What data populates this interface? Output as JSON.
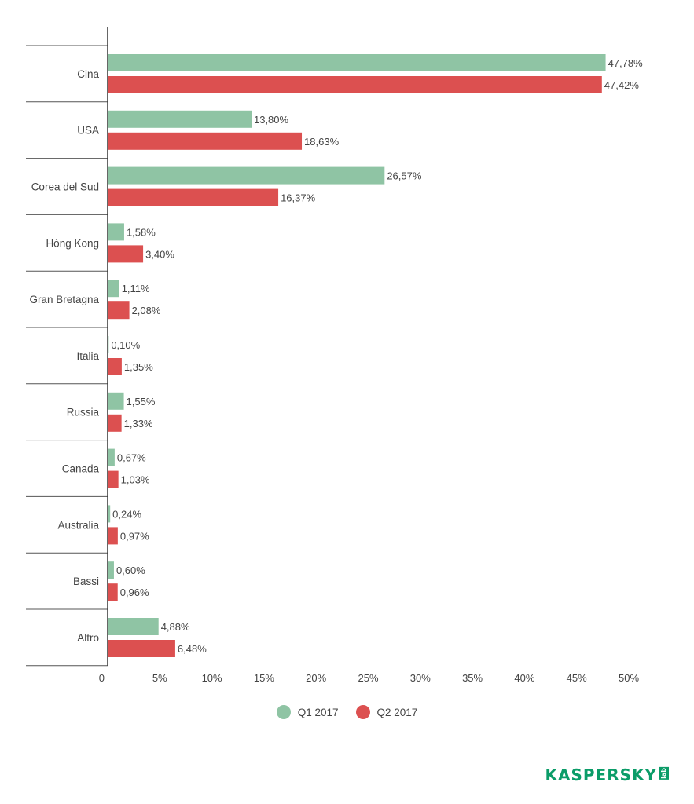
{
  "colors": {
    "q1": "#8fc4a4",
    "q2": "#dc5050",
    "axis": "#333333",
    "sep": "#555555",
    "brand": "#0b9c68"
  },
  "legend": {
    "q1_label": "Q1 2017",
    "q2_label": "Q2 2017"
  },
  "logo": {
    "text": "KASPERSKY",
    "sub": "lab"
  },
  "chart_data": {
    "type": "bar",
    "orientation": "horizontal",
    "categories": [
      "Cina",
      "USA",
      "Corea del Sud",
      "Hòng Kong",
      "Gran Bretagna",
      "Italia",
      "Russia",
      "Canada",
      "Australia",
      "Bassi",
      "Altro"
    ],
    "series": [
      {
        "name": "Q1 2017",
        "values": [
          47.78,
          13.8,
          26.57,
          1.58,
          1.11,
          0.1,
          1.55,
          0.67,
          0.24,
          0.6,
          4.88
        ],
        "labels": [
          "47,78%",
          "13,80%",
          "26,57%",
          "1,58%",
          "1,11%",
          "0,10%",
          "1,55%",
          "0,67%",
          "0,24%",
          "0,60%",
          "4,88%"
        ]
      },
      {
        "name": "Q2 2017",
        "values": [
          47.42,
          18.63,
          16.37,
          3.4,
          2.08,
          1.35,
          1.33,
          1.03,
          0.97,
          0.96,
          6.48
        ],
        "labels": [
          "47,42%",
          "18,63%",
          "16,37%",
          "3,40%",
          "2,08%",
          "1,35%",
          "1,33%",
          "1,03%",
          "0,97%",
          "0,96%",
          "6,48%"
        ]
      }
    ],
    "xlim": [
      0,
      50
    ],
    "xticks": [
      0,
      5,
      10,
      15,
      20,
      25,
      30,
      35,
      40,
      45,
      50
    ],
    "xtick_labels": [
      "0",
      "5%",
      "10%",
      "15%",
      "20%",
      "25%",
      "30%",
      "35%",
      "40%",
      "45%",
      "50%"
    ],
    "legend_position": "bottom",
    "grid": false
  }
}
